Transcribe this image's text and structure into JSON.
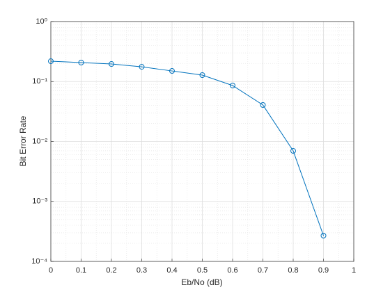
{
  "chart_data": {
    "type": "line",
    "xlabel": "Eb/No (dB)",
    "ylabel": "Bit Error Rate",
    "x": [
      0,
      0.1,
      0.2,
      0.3,
      0.4,
      0.5,
      0.6,
      0.7,
      0.8,
      0.9
    ],
    "series": [
      {
        "color": "#0072bd",
        "values": [
          0.218,
          0.207,
          0.196,
          0.176,
          0.15,
          0.128,
          0.0858,
          0.0406,
          0.00697,
          0.000269
        ]
      }
    ],
    "xlim": [
      0,
      1
    ],
    "xticks": [
      0,
      0.1,
      0.2,
      0.3,
      0.4,
      0.5,
      0.6,
      0.7,
      0.8,
      0.9,
      1
    ],
    "ylim": [
      0.0001,
      1
    ],
    "ylog": true,
    "yticks": [
      {
        "value": 0.0001,
        "label": "10⁻⁴"
      },
      {
        "value": 0.001,
        "label": "10⁻³"
      },
      {
        "value": 0.01,
        "label": "10⁻²"
      },
      {
        "value": 0.1,
        "label": "10⁻¹"
      },
      {
        "value": 1,
        "label": "10⁰"
      }
    ],
    "grid": true,
    "minor_grid": true
  }
}
